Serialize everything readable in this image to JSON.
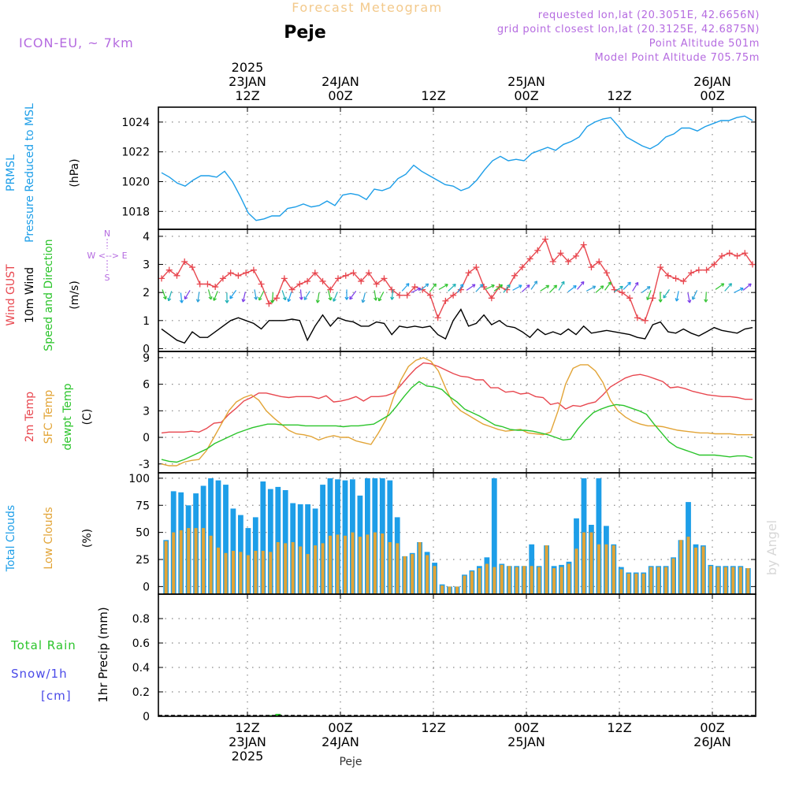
{
  "header": {
    "title": "Forecast Meteogram",
    "location": "Peje",
    "model": "ICON-EU, ~ 7km",
    "requested": "requested lon,lat (20.3051E, 42.6656N)",
    "gridpoint": "grid point closest lon,lat (20.3125E, 42.6875N)",
    "point_alt": "Point Altitude 501m",
    "model_alt": "Model Point Altitude 705.75m",
    "footer_location": "Peje",
    "watermark": "by Angel"
  },
  "colors": {
    "title": "#f3c98b",
    "purple": "#b56be0",
    "blue": "#1d9ee8",
    "red": "#e8474f",
    "orange": "#e2a436",
    "green": "#2bc42b",
    "black": "#000000",
    "snow": "#4a4ae8"
  },
  "chart_data": [
    {
      "type": "line",
      "panel": "pressure",
      "ylabels": [
        {
          "text": "PRMSL",
          "color": "blue"
        },
        {
          "text": "Pressure Reduced to MSL",
          "color": "blue"
        },
        {
          "text": "(hPa)",
          "color": "black"
        }
      ],
      "ylim": [
        1016.8,
        1025.0
      ],
      "yticks": [
        1018,
        1020,
        1022,
        1024
      ],
      "grid": true,
      "series": [
        {
          "color": "blue",
          "values": [
            1020.6,
            1020.3,
            1019.9,
            1019.7,
            1020.1,
            1020.4,
            1020.4,
            1020.3,
            1020.7,
            1020.0,
            1019.0,
            1017.9,
            1017.4,
            1017.5,
            1017.7,
            1017.7,
            1018.2,
            1018.3,
            1018.5,
            1018.3,
            1018.4,
            1018.7,
            1018.4,
            1019.1,
            1019.2,
            1019.1,
            1018.8,
            1019.5,
            1019.4,
            1019.6,
            1020.2,
            1020.5,
            1021.1,
            1020.7,
            1020.4,
            1020.1,
            1019.8,
            1019.7,
            1019.4,
            1019.6,
            1020.1,
            1020.8,
            1021.4,
            1021.7,
            1021.4,
            1021.5,
            1021.4,
            1021.9,
            1022.1,
            1022.3,
            1022.1,
            1022.5,
            1022.7,
            1023.0,
            1023.7,
            1024.0,
            1024.2,
            1024.3,
            1023.7,
            1023.0,
            1022.7,
            1022.4,
            1022.2,
            1022.5,
            1023.0,
            1023.2,
            1023.6,
            1023.6,
            1023.4,
            1023.7,
            1023.9,
            1024.1,
            1024.1,
            1024.3,
            1024.4,
            1024.1
          ]
        }
      ]
    },
    {
      "type": "line",
      "panel": "wind",
      "ylabels": [
        {
          "text": "Wind GUST",
          "color": "red"
        },
        {
          "text": "10m Wind",
          "color": "black"
        },
        {
          "text": "Speed and Direction",
          "color": "green"
        },
        {
          "text": "(m/s)",
          "color": "black"
        }
      ],
      "compass": [
        "N",
        "W <--> E",
        "S"
      ],
      "ylim": [
        -0.1,
        4.25
      ],
      "yticks": [
        0,
        1,
        2,
        3,
        4
      ],
      "grid": true,
      "series": [
        {
          "name": "Wind GUST",
          "color": "red",
          "marker": "+",
          "values": [
            2.5,
            2.8,
            2.6,
            3.1,
            2.9,
            2.3,
            2.3,
            2.2,
            2.5,
            2.7,
            2.6,
            2.7,
            2.8,
            2.3,
            1.6,
            1.8,
            2.5,
            2.1,
            2.3,
            2.4,
            2.7,
            2.4,
            2.1,
            2.5,
            2.6,
            2.7,
            2.4,
            2.7,
            2.3,
            2.5,
            2.1,
            1.9,
            1.9,
            2.2,
            2.1,
            1.9,
            1.1,
            1.7,
            1.9,
            2.1,
            2.7,
            2.9,
            2.2,
            1.8,
            2.2,
            2.1,
            2.6,
            2.9,
            3.2,
            3.5,
            3.9,
            3.1,
            3.4,
            3.1,
            3.3,
            3.7,
            2.9,
            3.1,
            2.7,
            2.1,
            2.0,
            1.8,
            1.1,
            1.0,
            1.8,
            2.9,
            2.6,
            2.5,
            2.4,
            2.7,
            2.8,
            2.8,
            3.0,
            3.3,
            3.4,
            3.3,
            3.4,
            3.0
          ]
        },
        {
          "name": "10m Wind",
          "color": "black",
          "values": [
            0.7,
            0.5,
            0.3,
            0.2,
            0.6,
            0.4,
            0.4,
            0.6,
            0.8,
            1.0,
            1.1,
            1.0,
            0.9,
            0.7,
            1.0,
            1.0,
            1.0,
            1.05,
            1.0,
            0.3,
            0.8,
            1.2,
            0.8,
            1.1,
            1.0,
            0.95,
            0.8,
            0.8,
            0.95,
            0.9,
            0.5,
            0.8,
            0.75,
            0.8,
            0.75,
            0.8,
            0.5,
            0.35,
            1.0,
            1.4,
            0.8,
            0.9,
            1.2,
            0.85,
            1.0,
            0.8,
            0.75,
            0.6,
            0.4,
            0.7,
            0.5,
            0.6,
            0.5,
            0.7,
            0.5,
            0.8,
            0.55,
            0.6,
            0.65,
            0.6,
            0.55,
            0.5,
            0.4,
            0.35,
            0.85,
            0.95,
            0.6,
            0.55,
            0.7,
            0.55,
            0.45,
            0.6,
            0.75,
            0.65,
            0.6,
            0.55,
            0.7,
            0.75
          ]
        }
      ]
    },
    {
      "type": "line",
      "panel": "temperature",
      "ylabels": [
        {
          "text": "2m Temp",
          "color": "red"
        },
        {
          "text": "SFC Temp",
          "color": "orange"
        },
        {
          "text": "dewpt Temp",
          "color": "green"
        },
        {
          "text": "(C)",
          "color": "black"
        }
      ],
      "ylim": [
        -4.0,
        9.7
      ],
      "yticks": [
        -3,
        0,
        3,
        6,
        9
      ],
      "grid": true,
      "series": [
        {
          "name": "2m Temp",
          "color": "red",
          "values": [
            0.5,
            0.6,
            0.6,
            0.6,
            0.7,
            0.6,
            1.0,
            1.6,
            1.7,
            2.6,
            3.3,
            4.1,
            4.5,
            5.0,
            5.0,
            4.8,
            4.6,
            4.5,
            4.6,
            4.6,
            4.6,
            4.4,
            4.7,
            4.0,
            4.1,
            4.3,
            4.6,
            4.1,
            4.6,
            4.6,
            4.7,
            5.0,
            5.9,
            6.9,
            7.8,
            8.4,
            8.3,
            8.0,
            7.6,
            7.2,
            6.9,
            6.8,
            6.5,
            6.5,
            5.6,
            5.6,
            5.1,
            5.2,
            4.9,
            5.0,
            4.6,
            4.5,
            3.7,
            3.9,
            3.2,
            3.6,
            3.5,
            3.8,
            4.0,
            4.8,
            5.7,
            6.2,
            6.7,
            7.0,
            7.1,
            6.9,
            6.6,
            6.3,
            5.6,
            5.7,
            5.5,
            5.2,
            5.0,
            4.8,
            4.7,
            4.6,
            4.6,
            4.5,
            4.3,
            4.3
          ]
        },
        {
          "name": "SFC Temp",
          "color": "orange",
          "values": [
            -3.0,
            -3.2,
            -3.2,
            -2.8,
            -2.6,
            -2.5,
            -1.5,
            0.0,
            1.5,
            3.0,
            4.0,
            4.5,
            4.8,
            4.2,
            3.0,
            2.2,
            1.5,
            0.8,
            0.4,
            0.3,
            0.1,
            -0.3,
            0.0,
            0.2,
            0.0,
            0.0,
            -0.4,
            -0.6,
            -0.8,
            0.5,
            2.0,
            4.5,
            6.5,
            8.0,
            8.7,
            9.0,
            8.6,
            7.5,
            5.5,
            3.8,
            3.0,
            2.5,
            2.0,
            1.5,
            1.2,
            0.9,
            0.7,
            0.8,
            0.9,
            0.5,
            0.4,
            0.3,
            0.6,
            3.0,
            6.0,
            7.8,
            8.2,
            8.2,
            7.5,
            6.2,
            4.2,
            3.0,
            2.3,
            1.8,
            1.5,
            1.3,
            1.3,
            1.2,
            1.0,
            0.8,
            0.7,
            0.6,
            0.5,
            0.5,
            0.4,
            0.4,
            0.4,
            0.3,
            0.3,
            0.3
          ]
        },
        {
          "name": "dewpt Temp",
          "color": "green",
          "values": [
            -2.5,
            -2.7,
            -2.8,
            -2.5,
            -2.1,
            -1.7,
            -1.3,
            -0.7,
            -0.3,
            0.1,
            0.5,
            0.8,
            1.1,
            1.3,
            1.5,
            1.5,
            1.4,
            1.4,
            1.4,
            1.3,
            1.3,
            1.3,
            1.3,
            1.3,
            1.2,
            1.3,
            1.3,
            1.4,
            1.5,
            2.0,
            2.5,
            3.5,
            4.6,
            5.6,
            6.3,
            5.8,
            5.7,
            5.4,
            4.6,
            4.0,
            3.2,
            2.8,
            2.4,
            1.9,
            1.4,
            1.2,
            0.9,
            0.8,
            0.8,
            0.7,
            0.5,
            0.3,
            0.0,
            -0.3,
            -0.2,
            1.0,
            2.0,
            2.8,
            3.2,
            3.5,
            3.7,
            3.6,
            3.3,
            3.0,
            2.6,
            1.5,
            0.5,
            -0.5,
            -1.1,
            -1.4,
            -1.7,
            -2.0,
            -2.0,
            -2.0,
            -2.1,
            -2.2,
            -2.1,
            -2.1,
            -2.3
          ]
        }
      ]
    },
    {
      "type": "bar",
      "panel": "clouds",
      "ylabels": [
        {
          "text": "Total Clouds",
          "color": "blue"
        },
        {
          "text": "Low Clouds",
          "color": "orange"
        },
        {
          "text": "(%)",
          "color": "black"
        }
      ],
      "ylim": [
        -7,
        105
      ],
      "yticks": [
        0,
        25,
        50,
        75,
        100
      ],
      "grid": true,
      "series": [
        {
          "name": "Total Clouds",
          "color": "blue",
          "values": [
            43,
            88,
            87,
            75,
            86,
            93,
            100,
            98,
            94,
            72,
            66,
            54,
            64,
            97,
            90,
            92,
            89,
            77,
            76,
            76,
            72,
            94,
            100,
            99,
            98,
            99,
            84,
            100,
            100,
            100,
            98,
            64,
            28,
            31,
            41,
            32,
            22,
            2,
            0,
            0,
            11,
            15,
            19,
            27,
            100,
            21,
            19,
            19,
            19,
            39,
            19,
            38,
            19,
            20,
            23,
            63,
            100,
            57,
            100,
            56,
            39,
            18,
            13,
            13,
            13,
            19,
            19,
            19,
            27,
            43,
            78,
            39,
            38,
            20,
            19,
            19,
            19,
            19,
            17
          ]
        },
        {
          "name": "Low Clouds",
          "color": "orange",
          "values": [
            42,
            50,
            52,
            54,
            54,
            54,
            47,
            36,
            31,
            33,
            32,
            29,
            33,
            33,
            32,
            41,
            40,
            41,
            37,
            30,
            38,
            40,
            47,
            48,
            47,
            50,
            46,
            48,
            50,
            49,
            41,
            40,
            28,
            30,
            41,
            29,
            19,
            1,
            0,
            0,
            10,
            14,
            17,
            21,
            18,
            20,
            19,
            18,
            19,
            19,
            18,
            38,
            17,
            18,
            21,
            35,
            50,
            50,
            39,
            39,
            38,
            16,
            12,
            12,
            12,
            18,
            18,
            18,
            26,
            43,
            46,
            36,
            37,
            19,
            18,
            18,
            18,
            18,
            17
          ]
        }
      ]
    },
    {
      "type": "bar",
      "panel": "precipitation",
      "ylabels": [
        {
          "text": "Total   Rain",
          "color": "green"
        },
        {
          "text": "Snow/1h",
          "color": "snow"
        },
        {
          "text": "[cm]",
          "color": "snow"
        },
        {
          "text": "1hr Precip (mm)",
          "color": "black"
        }
      ],
      "ylim": [
        0,
        1.0
      ],
      "yticks": [
        0,
        0.2,
        0.4,
        0.6,
        0.8
      ],
      "grid": true,
      "series": [
        {
          "name": "Total Rain",
          "color": "green",
          "values": [
            0,
            0,
            0,
            0,
            0,
            0,
            0,
            0,
            0,
            0,
            0,
            0,
            0,
            0,
            0.01,
            0.02,
            0,
            0,
            0,
            0,
            0,
            0,
            0,
            0,
            0,
            0,
            0,
            0,
            0,
            0,
            0,
            0,
            0,
            0,
            0,
            0,
            0,
            0,
            0,
            0,
            0,
            0,
            0,
            0,
            0,
            0,
            0,
            0,
            0,
            0,
            0,
            0,
            0,
            0,
            0,
            0,
            0,
            0,
            0,
            0,
            0,
            0,
            0,
            0,
            0,
            0,
            0,
            0,
            0,
            0,
            0,
            0,
            0,
            0,
            0,
            0,
            0,
            0,
            0
          ]
        }
      ]
    }
  ],
  "time_axis": {
    "top": [
      {
        "lines": [
          "2025",
          "23JAN",
          "12Z"
        ]
      },
      {
        "lines": [
          "24JAN",
          "00Z"
        ]
      },
      {
        "lines": [
          "12Z"
        ]
      },
      {
        "lines": [
          "25JAN",
          "00Z"
        ]
      },
      {
        "lines": [
          "12Z"
        ]
      },
      {
        "lines": [
          "26JAN",
          "00Z"
        ]
      }
    ],
    "bottom": [
      {
        "lines": [
          "12Z",
          "23JAN",
          "2025"
        ]
      },
      {
        "lines": [
          "00Z",
          "24JAN"
        ]
      },
      {
        "lines": [
          "12Z"
        ]
      },
      {
        "lines": [
          "00Z",
          "25JAN"
        ]
      },
      {
        "lines": [
          "12Z"
        ]
      },
      {
        "lines": [
          "00Z",
          "26JAN"
        ]
      }
    ]
  }
}
